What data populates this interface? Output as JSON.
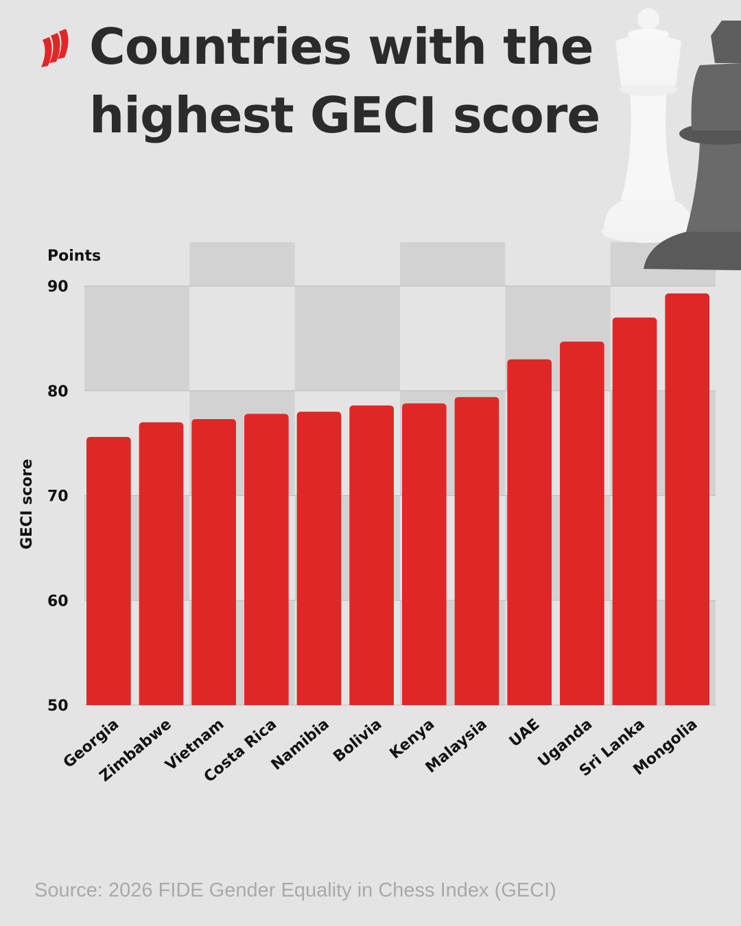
{
  "header": {
    "title_line_1": "Countries with the",
    "title_line_2": "highest GECI score",
    "logo": "sbs-logo",
    "illustration": "chess-queen-and-king"
  },
  "colors": {
    "bar": "#e02727",
    "logo": "#e02727",
    "title": "#2b2b2b",
    "source": "#a9a9a9"
  },
  "chart_data": {
    "type": "bar",
    "unit_label": "Points",
    "ylabel": "GECI score",
    "xlabel": "",
    "ylim": [
      50,
      90
    ],
    "yticks": [
      50,
      60,
      70,
      80,
      90
    ],
    "grid": true,
    "categories": [
      "Georgia",
      "Zimbabwe",
      "Vietnam",
      "Costa Rica",
      "Namibia",
      "Bolivia",
      "Kenya",
      "Malaysia",
      "UAE",
      "Uganda",
      "Sri Lanka",
      "Mongolia"
    ],
    "values": [
      75.6,
      77.0,
      77.3,
      77.8,
      78.0,
      78.6,
      78.8,
      79.4,
      83.0,
      84.7,
      87.0,
      89.3
    ]
  },
  "source": "Source: 2026 FIDE Gender Equality in Chess Index (GECI)"
}
